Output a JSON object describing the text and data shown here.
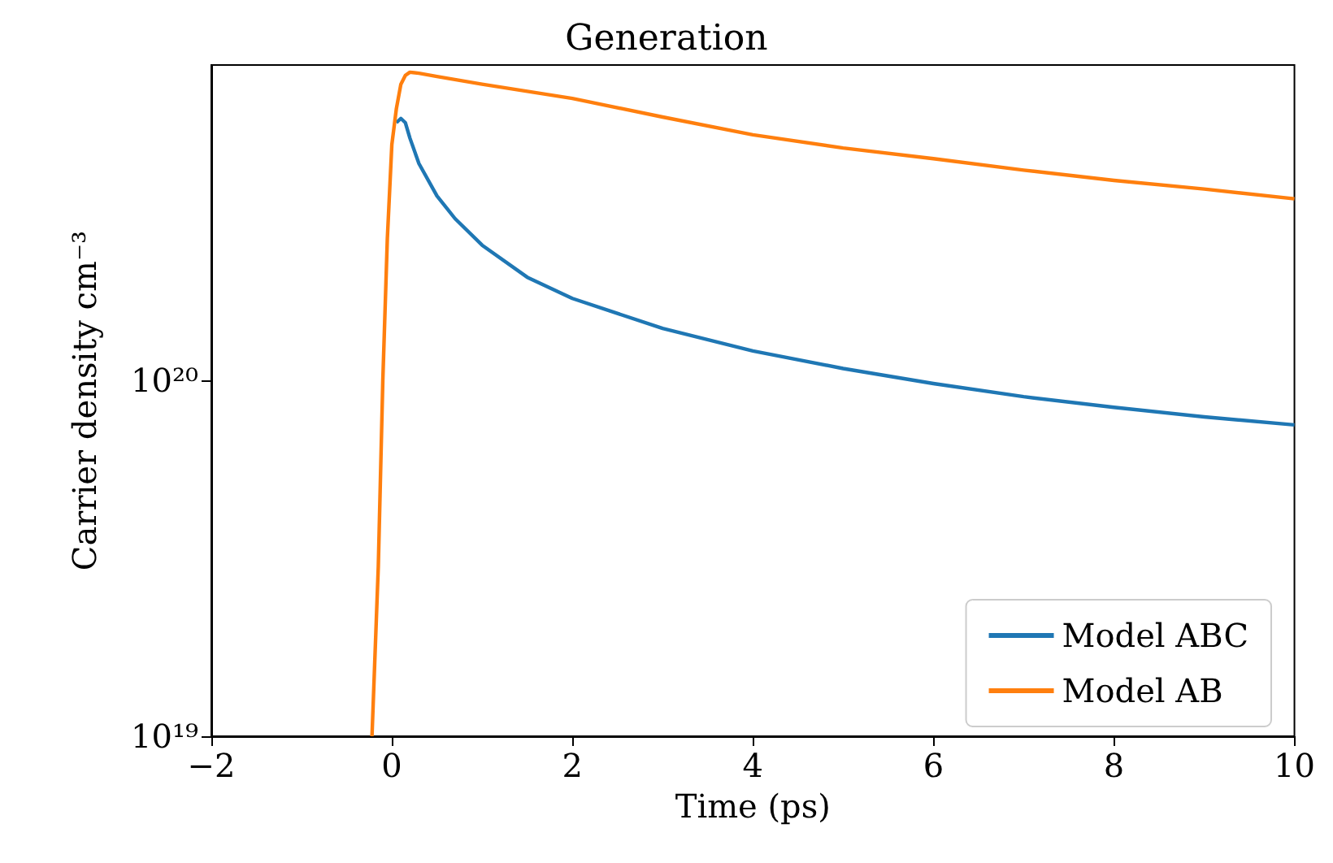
{
  "chart_data": {
    "type": "line",
    "title": "Generation",
    "xlabel": "Time (ps)",
    "ylabel": "Carrier density cm⁻³",
    "log": "y",
    "grid": false,
    "legend": "bottom right",
    "marker": "none",
    "line_style": "solid",
    "xlim": [
      -2,
      10
    ],
    "xticks": [
      {
        "value": -2,
        "label": "−2"
      },
      0,
      2,
      4,
      6,
      8,
      10
    ],
    "ylim": [
      1e+19,
      7.7e+20
    ],
    "yticks": [
      {
        "value": 1e+19,
        "label": "10¹⁹"
      },
      {
        "value": 1e+20,
        "label": "10²⁰"
      }
    ],
    "series": [
      {
        "name": "Model ABC",
        "color": "#1f77b4",
        "x": [
          0.05,
          0.1,
          0.15,
          0.2,
          0.3,
          0.5,
          0.7,
          1,
          1.5,
          2,
          3,
          4,
          5,
          6,
          7,
          8,
          9,
          10
        ],
        "values": [
          5.3e+20,
          5.45e+20,
          5.3e+20,
          4.8e+20,
          4.07e+20,
          3.3e+20,
          2.85e+20,
          2.4e+20,
          1.95e+20,
          1.7e+20,
          1.4e+20,
          1.21e+20,
          1.08e+20,
          9.8e+19,
          9e+19,
          8.4e+19,
          7.9e+19,
          7.5e+19
        ]
      },
      {
        "name": "Model AB",
        "color": "#ff7f0e",
        "x": [
          -0.22,
          -0.15,
          -0.1,
          -0.05,
          0,
          0.05,
          0.1,
          0.15,
          0.2,
          0.3,
          0.5,
          1,
          2,
          3,
          4,
          5,
          6,
          7,
          8,
          9,
          10
        ],
        "values": [
          1e+19,
          3e+19,
          1e+20,
          2.5e+20,
          4.6e+20,
          5.8e+20,
          6.8e+20,
          7.2e+20,
          7.35e+20,
          7.3e+20,
          7.15e+20,
          6.8e+20,
          6.2e+20,
          5.5e+20,
          4.9e+20,
          4.5e+20,
          4.2e+20,
          3.9e+20,
          3.65e+20,
          3.45e+20,
          3.24e+20
        ]
      }
    ]
  }
}
